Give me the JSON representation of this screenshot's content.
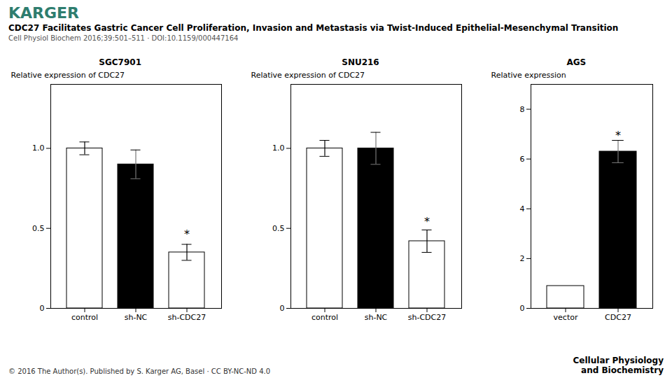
{
  "title": "CDC27 Facilitates Gastric Cancer Cell Proliferation, Invasion and Metastasis via Twist-Induced Epithelial-Mesenchymal Transition",
  "subtitle": "Cell Physiol Biochem 2016;39:501–511 · DOI:10.1159/000447164",
  "annotations": [
    {
      "text": "KARGER",
      "color": "#2e7d6e"
    },
    {
      "text": "© 2016 The Author(s). Published by S. Karger AG, Basel · CC BY-NC-ND 4.0"
    },
    {
      "text": "Cellular Physiology"
    },
    {
      "text": "and Biochemistry"
    }
  ],
  "chart_data": [
    {
      "type": "bar",
      "title": "SGC7901",
      "categories": [
        "control",
        "sh-NC",
        "sh-CDC27"
      ],
      "values": [
        1.0,
        0.9,
        0.35
      ],
      "errors": [
        0.04,
        0.09,
        0.05
      ],
      "colors": [
        "white",
        "black",
        "white"
      ],
      "ylabel": "Relative expression of CDC27",
      "ylim": [
        0,
        1.4
      ],
      "yticks": [
        0,
        0.5,
        {
          "value": 1,
          "label": "1.0"
        }
      ],
      "annotations": [
        {
          "x": "sh-CDC27",
          "y": 0.44,
          "text": "*"
        }
      ]
    },
    {
      "type": "bar",
      "title": "SNU216",
      "categories": [
        "control",
        "sh-NC",
        "sh-CDC27"
      ],
      "values": [
        1.0,
        1.0,
        0.42
      ],
      "errors": [
        0.05,
        0.1,
        0.07
      ],
      "colors": [
        "white",
        "black",
        "white"
      ],
      "ylabel": "Relative expression of CDC27",
      "ylim": [
        0,
        1.4
      ],
      "yticks": [
        0,
        0.5,
        {
          "value": 1,
          "label": "1.0"
        }
      ],
      "annotations": [
        {
          "x": "sh-CDC27",
          "y": 0.52,
          "text": "*"
        }
      ]
    },
    {
      "type": "bar",
      "title": "AGS",
      "categories": [
        "vector",
        "CDC27"
      ],
      "values": [
        0.9,
        6.3
      ],
      "errors": [
        0.0,
        0.45
      ],
      "colors": [
        "white",
        "black"
      ],
      "ylabel": "Relative expression",
      "ylim": [
        0,
        9
      ],
      "yticks": [
        0,
        2,
        4,
        6,
        8
      ],
      "annotations": [
        {
          "x": "CDC27",
          "y": 6.8,
          "text": "*"
        }
      ]
    }
  ]
}
